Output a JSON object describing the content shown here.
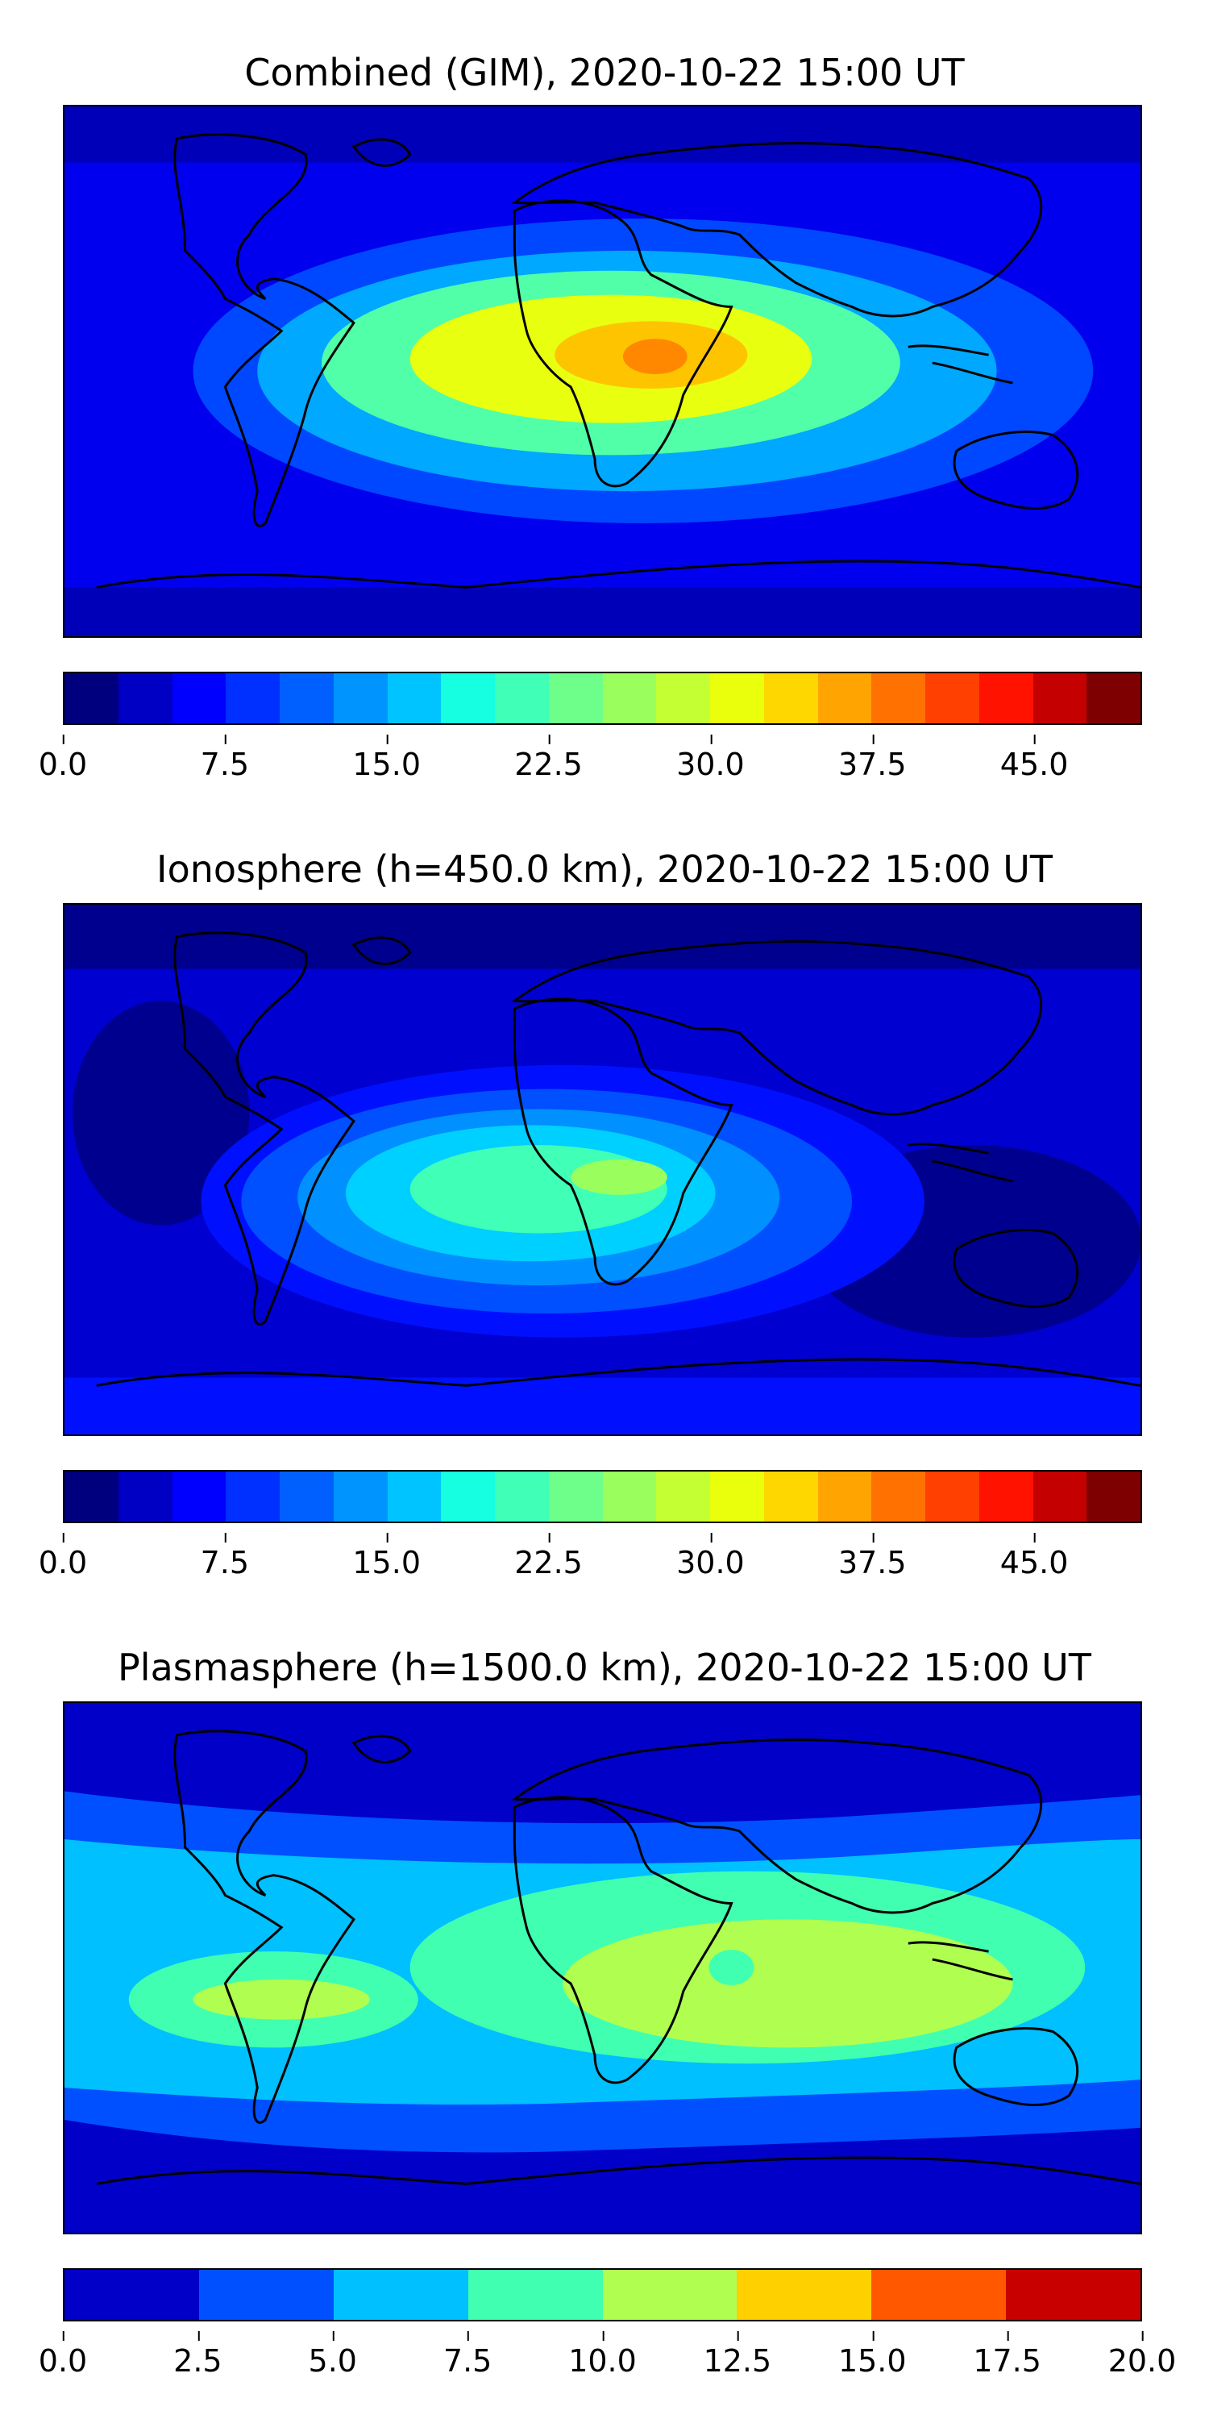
{
  "panels": [
    {
      "title": "Combined (GIM), 2020-10-22 15:00 UT",
      "colorbar": {
        "ticks": [
          "0.0",
          "7.5",
          "15.0",
          "22.5",
          "30.0",
          "37.5",
          "45.0"
        ],
        "tick_values": [
          0,
          7.5,
          15,
          22.5,
          30,
          37.5,
          45
        ],
        "range": [
          0,
          50
        ],
        "colors": [
          "#00007f",
          "#0000c4",
          "#0000ff",
          "#0030ff",
          "#0060ff",
          "#0094ff",
          "#00c4ff",
          "#16ffe1",
          "#40ffb7",
          "#6dff8a",
          "#9aff5d",
          "#c4ff33",
          "#eaff0c",
          "#ffd700",
          "#ffa400",
          "#ff7100",
          "#ff4000",
          "#ff1300",
          "#c40000",
          "#7f0000"
        ]
      },
      "map_colors": [
        "#0000b8",
        "#0000ee",
        "#0048ff",
        "#00a8ff",
        "#50ffa8",
        "#e8ff10",
        "#ffc400",
        "#ff8800"
      ]
    },
    {
      "title": "Ionosphere  (h=450.0 km), 2020-10-22 15:00 UT",
      "colorbar": {
        "ticks": [
          "0.0",
          "7.5",
          "15.0",
          "22.5",
          "30.0",
          "37.5",
          "45.0"
        ],
        "tick_values": [
          0,
          7.5,
          15,
          22.5,
          30,
          37.5,
          45
        ],
        "range": [
          0,
          50
        ],
        "colors": [
          "#00007f",
          "#0000c4",
          "#0000ff",
          "#0030ff",
          "#0060ff",
          "#0094ff",
          "#00c4ff",
          "#16ffe1",
          "#40ffb7",
          "#6dff8a",
          "#9aff5d",
          "#c4ff33",
          "#eaff0c",
          "#ffd700",
          "#ffa400",
          "#ff7100",
          "#ff4000",
          "#ff1300",
          "#c40000",
          "#7f0000"
        ]
      },
      "map_colors": [
        "#00008f",
        "#0000d0",
        "#0010ff",
        "#0050ff",
        "#0090ff",
        "#00d0ff",
        "#40ffb7",
        "#9aff5d"
      ]
    },
    {
      "title": "Plasmasphere (h=1500.0 km), 2020-10-22 15:00 UT",
      "colorbar": {
        "ticks": [
          "0.0",
          "2.5",
          "5.0",
          "7.5",
          "10.0",
          "12.5",
          "15.0",
          "17.5",
          "20.0"
        ],
        "tick_values": [
          0,
          2.5,
          5,
          7.5,
          10,
          12.5,
          15,
          17.5,
          20
        ],
        "range": [
          0,
          20
        ],
        "colors": [
          "#0000c8",
          "#0050ff",
          "#00c0ff",
          "#40ffb0",
          "#b0ff50",
          "#ffd000",
          "#ff5800",
          "#c80000"
        ]
      },
      "map_colors": [
        "#0000c8",
        "#0050ff",
        "#00c0ff",
        "#40ffb0",
        "#b0ff50"
      ]
    }
  ]
}
